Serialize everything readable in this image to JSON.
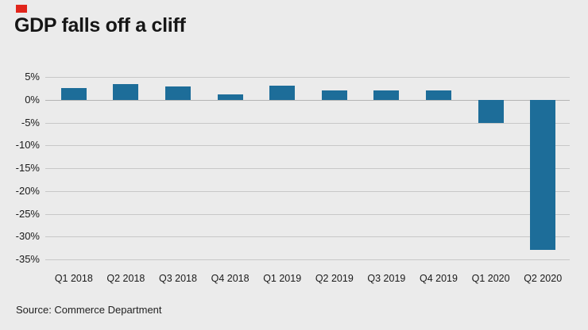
{
  "header": {
    "title": "GDP falls off a cliff"
  },
  "footer": {
    "source": "Source: Commerce Department"
  },
  "chart_data": {
    "type": "bar",
    "title": "GDP falls off a cliff",
    "categories": [
      "Q1 2018",
      "Q2 2018",
      "Q3 2018",
      "Q4 2018",
      "Q1 2019",
      "Q2 2019",
      "Q3 2019",
      "Q4 2019",
      "Q1 2020",
      "Q2 2020"
    ],
    "values": [
      2.5,
      3.5,
      2.9,
      1.1,
      3.1,
      2.0,
      2.1,
      2.1,
      -5.0,
      -32.9
    ],
    "xlabel": "",
    "ylabel": "",
    "ylim": [
      -35,
      5
    ],
    "ytick_step": 5,
    "ytick_suffix": "%",
    "grid": true,
    "legend": "none",
    "bar_color": "#1d6d99",
    "accent_color": "#e1251b",
    "background_color": "#ebebeb",
    "source": "Source: Commerce Department"
  }
}
